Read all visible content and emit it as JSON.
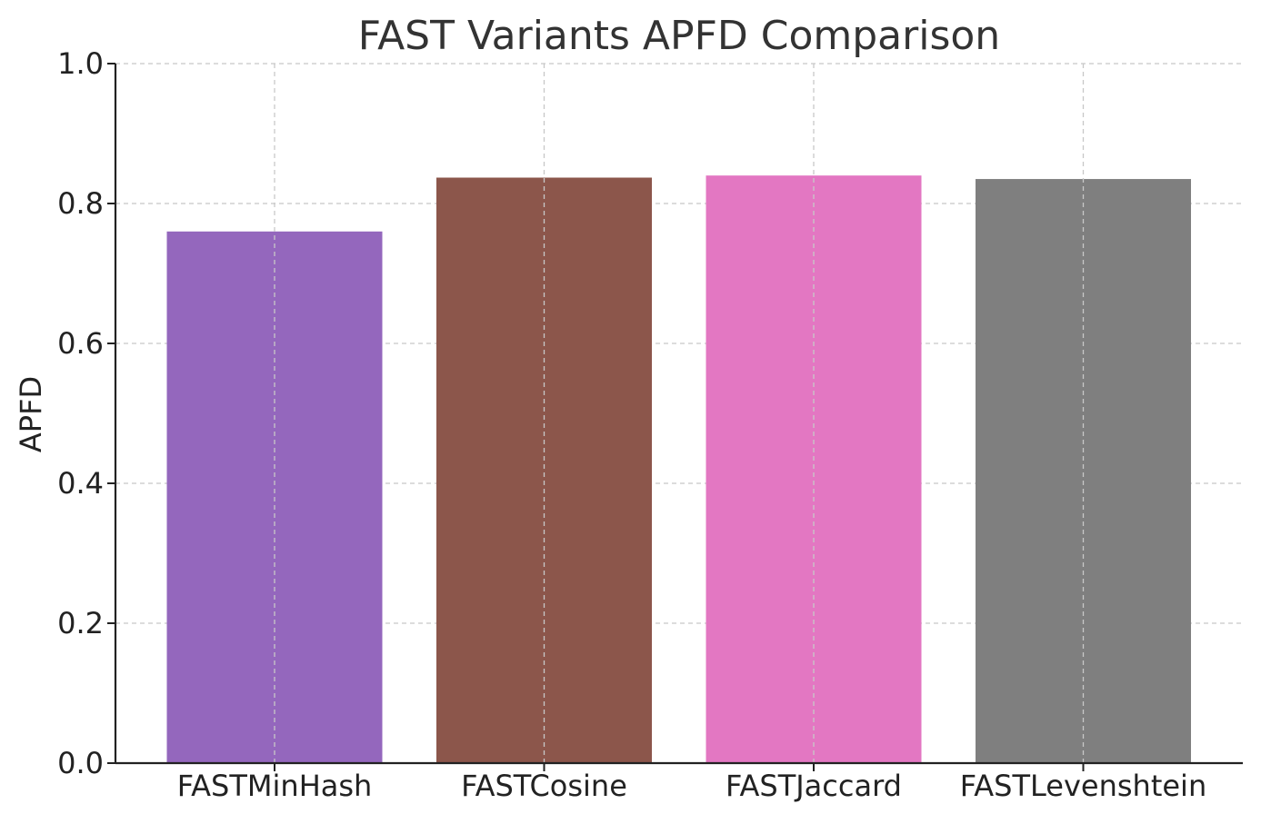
{
  "chart_data": {
    "type": "bar",
    "title": "FAST Variants APFD Comparison",
    "xlabel": "",
    "ylabel": "APFD",
    "categories": [
      "FASTMinHash",
      "FASTCosine",
      "FASTJaccard",
      "FASTLevenshtein"
    ],
    "values": [
      0.76,
      0.837,
      0.84,
      0.835
    ],
    "colors": [
      "#9467bd",
      "#8c564b",
      "#e377c2",
      "#7f7f7f"
    ],
    "ylim": [
      0,
      1.0
    ],
    "yticks": [
      "0.0",
      "0.2",
      "0.4",
      "0.6",
      "0.8",
      "1.0"
    ],
    "grid": true
  }
}
